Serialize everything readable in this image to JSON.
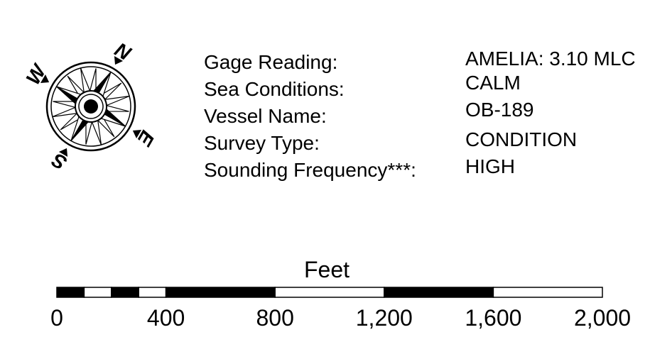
{
  "compass": {
    "icon": "north-arrow-compass-rose-icon",
    "north": "N",
    "east": "E",
    "south": "S",
    "west": "W"
  },
  "info": {
    "labels": [
      "Gage Reading:",
      "Sea Conditions:",
      "Vessel Name:",
      "Survey Type:",
      "Sounding Frequency***:"
    ],
    "values": [
      "AMELIA: 3.10 MLC",
      "CALM",
      "OB-189",
      "CONDITION",
      "HIGH"
    ]
  },
  "scale": {
    "unit": "Feet",
    "ticks": [
      "0",
      "400",
      "800",
      "1,200",
      "1,600",
      "2,000"
    ],
    "tick_values": [
      0,
      400,
      800,
      1200,
      1600,
      2000
    ],
    "max_value": 2000,
    "segments": [
      {
        "from": 0,
        "to": 100,
        "fill": "#000000"
      },
      {
        "from": 100,
        "to": 200,
        "fill": "#ffffff"
      },
      {
        "from": 200,
        "to": 300,
        "fill": "#000000"
      },
      {
        "from": 300,
        "to": 400,
        "fill": "#ffffff"
      },
      {
        "from": 400,
        "to": 800,
        "fill": "#000000"
      },
      {
        "from": 800,
        "to": 1200,
        "fill": "#ffffff"
      },
      {
        "from": 1200,
        "to": 1600,
        "fill": "#000000"
      },
      {
        "from": 1600,
        "to": 2000,
        "fill": "#ffffff"
      }
    ]
  }
}
